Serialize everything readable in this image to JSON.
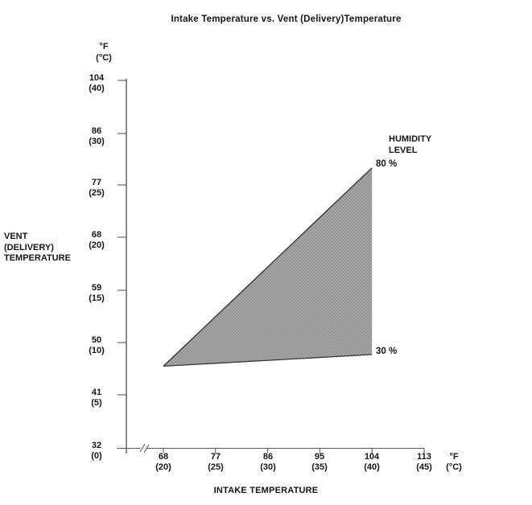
{
  "title": "Intake Temperature vs. Vent (Delivery)Temperature",
  "colors": {
    "background": "#ffffff",
    "text": "#151515",
    "axis": "#4d4d4d",
    "region_fill": "#9e9e9e",
    "region_fill_dark": "#858585",
    "region_fill_light": "#b2b2b2",
    "region_edge": "#383838"
  },
  "y_axis": {
    "unit_f": "°F",
    "unit_c": "(°C)",
    "side_label": {
      "line1": "VENT",
      "line2": "(DELIVERY)",
      "line3": "TEMPERATURE"
    },
    "ticks": [
      {
        "f": "104",
        "c": "(40)"
      },
      {
        "f": "86",
        "c": "(30)"
      },
      {
        "f": "77",
        "c": "(25)"
      },
      {
        "f": "68",
        "c": "(20)"
      },
      {
        "f": "59",
        "c": "(15)"
      },
      {
        "f": "50",
        "c": "(10)"
      },
      {
        "f": "41",
        "c": "(5)"
      },
      {
        "f": "32",
        "c": "(0)"
      }
    ]
  },
  "x_axis": {
    "title": "INTAKE TEMPERATURE",
    "unit_f": "°F",
    "unit_c": "(°C)",
    "ticks": [
      {
        "f": "68",
        "c": "(20)"
      },
      {
        "f": "77",
        "c": "(25)"
      },
      {
        "f": "86",
        "c": "(30)"
      },
      {
        "f": "95",
        "c": "(35)"
      },
      {
        "f": "104",
        "c": "(40)"
      },
      {
        "f": "113",
        "c": "(45)"
      }
    ]
  },
  "annotations": {
    "humidity_line1": "HUMIDITY",
    "humidity_line2": "LEVEL",
    "upper_label": "80 %",
    "lower_label": "30 %"
  },
  "chart_data": {
    "type": "area",
    "title": "Intake Temperature vs. Vent (Delivery)Temperature",
    "xlabel": "INTAKE TEMPERATURE",
    "ylabel": "VENT (DELIVERY) TEMPERATURE",
    "units": "°F with (°C) equivalents on both axes",
    "x_ticks_f": [
      68,
      77,
      86,
      95,
      104,
      113
    ],
    "x_ticks_c": [
      20,
      25,
      30,
      35,
      40,
      45
    ],
    "y_ticks_f": [
      32,
      41,
      50,
      59,
      68,
      77,
      86,
      104
    ],
    "y_ticks_c": [
      0,
      5,
      10,
      15,
      20,
      25,
      30,
      40
    ],
    "axis_break_on_x_near_origin": true,
    "grid": false,
    "legend_position": "labels at right ends of lines",
    "series": [
      {
        "name": "80 %",
        "humidity_percent": 80,
        "points_f": [
          [
            68,
            46
          ],
          [
            104,
            80
          ]
        ]
      },
      {
        "name": "30 %",
        "humidity_percent": 30,
        "points_f": [
          [
            68,
            46
          ],
          [
            104,
            48
          ]
        ]
      }
    ],
    "shaded_region": "gray halftone band between the 30 % and 80 % humidity lines"
  }
}
